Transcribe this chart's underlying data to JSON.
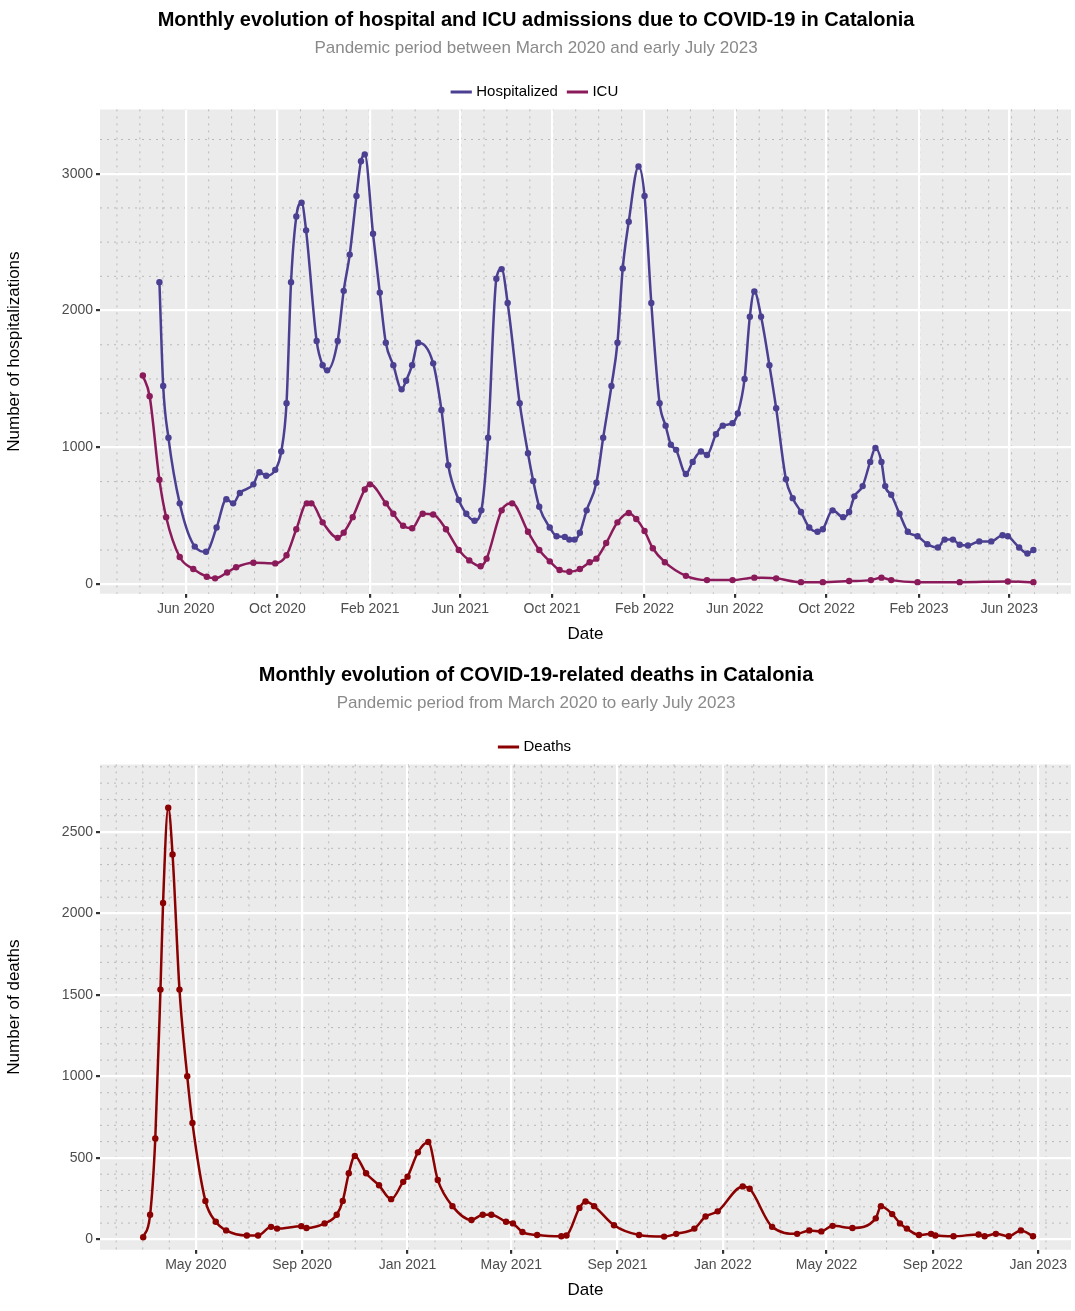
{
  "chart_data": [
    {
      "type": "line",
      "title": "Monthly evolution of hospital and ICU admissions due to COVID-19 in Catalonia",
      "subtitle": "Pandemic period between March 2020 and early July 2023",
      "xlabel": "Date",
      "ylabel": "Number of hospitalizations",
      "legend": "top",
      "grid": true,
      "marker": "circle",
      "line_style": "solid",
      "xlim": [
        "2020-02-08",
        "2023-08-22"
      ],
      "xticks": [
        {
          "value": "2020-06-01",
          "label": "Jun 2020"
        },
        {
          "value": "2020-10-01",
          "label": "Oct 2020"
        },
        {
          "value": "2021-02-01",
          "label": "Feb 2021"
        },
        {
          "value": "2021-06-01",
          "label": "Jun 2021"
        },
        {
          "value": "2021-10-01",
          "label": "Oct 2021"
        },
        {
          "value": "2022-02-01",
          "label": "Feb 2022"
        },
        {
          "value": "2022-06-01",
          "label": "Jun 2022"
        },
        {
          "value": "2022-10-01",
          "label": "Oct 2022"
        },
        {
          "value": "2023-02-01",
          "label": "Feb 2023"
        },
        {
          "value": "2023-06-01",
          "label": "Jun 2023"
        }
      ],
      "ylim": [
        -70,
        3470
      ],
      "yticks": [
        0,
        1000,
        2000,
        3000
      ],
      "series": [
        {
          "name": "Hospitalized",
          "color": "#4a3f91",
          "x": [
            "2020-04-27",
            "2020-05-02",
            "2020-05-09",
            "2020-05-24",
            "2020-06-13",
            "2020-06-28",
            "2020-07-12",
            "2020-07-25",
            "2020-08-03",
            "2020-08-12",
            "2020-08-30",
            "2020-09-07",
            "2020-09-16",
            "2020-09-28",
            "2020-10-06",
            "2020-10-13",
            "2020-10-19",
            "2020-10-26",
            "2020-11-02",
            "2020-11-08",
            "2020-11-22",
            "2020-11-30",
            "2020-12-06",
            "2020-12-20",
            "2020-12-28",
            "2021-01-05",
            "2021-01-14",
            "2021-01-20",
            "2021-01-25",
            "2021-02-05",
            "2021-02-14",
            "2021-02-22",
            "2021-03-04",
            "2021-03-15",
            "2021-03-21",
            "2021-03-29",
            "2021-04-06",
            "2021-04-26",
            "2021-05-07",
            "2021-05-16",
            "2021-05-30",
            "2021-06-09",
            "2021-06-20",
            "2021-06-29",
            "2021-07-08",
            "2021-07-19",
            "2021-07-26",
            "2021-08-03",
            "2021-08-19",
            "2021-08-30",
            "2021-09-06",
            "2021-09-14",
            "2021-09-28",
            "2021-10-07",
            "2021-10-18",
            "2021-10-24",
            "2021-10-31",
            "2021-11-07",
            "2021-11-16",
            "2021-11-29",
            "2021-12-08",
            "2021-12-19",
            "2021-12-27",
            "2022-01-03",
            "2022-01-11",
            "2022-01-24",
            "2022-02-01",
            "2022-02-10",
            "2022-02-21",
            "2022-03-01",
            "2022-03-08",
            "2022-03-15",
            "2022-03-28",
            "2022-04-06",
            "2022-04-17",
            "2022-04-25",
            "2022-05-07",
            "2022-05-16",
            "2022-05-29",
            "2022-06-05",
            "2022-06-14",
            "2022-06-21",
            "2022-06-27",
            "2022-07-06",
            "2022-07-17",
            "2022-07-26",
            "2022-08-08",
            "2022-08-17",
            "2022-08-28",
            "2022-09-08",
            "2022-09-19",
            "2022-09-26",
            "2022-10-09",
            "2022-10-23",
            "2022-10-31",
            "2022-11-07",
            "2022-11-18",
            "2022-11-28",
            "2022-12-05",
            "2022-12-13",
            "2022-12-18",
            "2022-12-26",
            "2023-01-06",
            "2023-01-17",
            "2023-01-30",
            "2023-02-12",
            "2023-02-26",
            "2023-03-07",
            "2023-03-18",
            "2023-03-27",
            "2023-04-07",
            "2023-04-22",
            "2023-05-08",
            "2023-05-23",
            "2023-05-30",
            "2023-06-14",
            "2023-06-25",
            "2023-07-03"
          ],
          "values": [
            2207,
            1449,
            1070,
            591,
            275,
            237,
            414,
            621,
            591,
            667,
            730,
            818,
            793,
            836,
            970,
            1323,
            2207,
            2687,
            2788,
            2586,
            1778,
            1601,
            1563,
            1778,
            2144,
            2409,
            2838,
            3091,
            3141,
            2561,
            2131,
            1765,
            1601,
            1424,
            1487,
            1601,
            1765,
            1614,
            1273,
            869,
            616,
            515,
            464,
            540,
            1070,
            2232,
            2303,
            2055,
            1323,
            957,
            755,
            566,
            414,
            351,
            346,
            326,
            326,
            376,
            540,
            742,
            1070,
            1449,
            1765,
            2308,
            2649,
            3053,
            2838,
            2055,
            1323,
            1159,
            1020,
            982,
            805,
            894,
            970,
            944,
            1096,
            1159,
            1177,
            1248,
            1500,
            1955,
            2139,
            1955,
            1601,
            1286,
            767,
            629,
            528,
            414,
            384,
            402,
            540,
            490,
            528,
            642,
            717,
            894,
            995,
            894,
            717,
            654,
            515,
            384,
            351,
            293,
            268,
            326,
            326,
            288,
            283,
            313,
            313,
            358,
            351,
            268,
            225,
            250
          ]
        },
        {
          "name": "ICU",
          "color": "#8b1a5b",
          "x": [
            "2020-04-05",
            "2020-04-14",
            "2020-04-27",
            "2020-05-06",
            "2020-05-24",
            "2020-06-11",
            "2020-06-29",
            "2020-07-10",
            "2020-07-26",
            "2020-08-07",
            "2020-08-30",
            "2020-09-28",
            "2020-10-13",
            "2020-10-26",
            "2020-11-09",
            "2020-11-15",
            "2020-11-30",
            "2020-12-20",
            "2020-12-28",
            "2021-01-09",
            "2021-01-25",
            "2021-02-01",
            "2021-02-22",
            "2021-03-04",
            "2021-03-17",
            "2021-03-29",
            "2021-04-12",
            "2021-04-26",
            "2021-05-13",
            "2021-05-30",
            "2021-06-13",
            "2021-06-28",
            "2021-07-06",
            "2021-07-26",
            "2021-08-09",
            "2021-08-30",
            "2021-09-14",
            "2021-09-28",
            "2021-10-11",
            "2021-10-24",
            "2021-11-07",
            "2021-11-20",
            "2021-11-29",
            "2021-12-12",
            "2021-12-27",
            "2022-01-11",
            "2022-01-21",
            "2022-02-01",
            "2022-02-12",
            "2022-02-28",
            "2022-03-28",
            "2022-04-25",
            "2022-05-29",
            "2022-06-27",
            "2022-07-26",
            "2022-08-28",
            "2022-09-26",
            "2022-10-31",
            "2022-11-29",
            "2022-12-13",
            "2022-12-26",
            "2023-01-30",
            "2023-03-27",
            "2023-05-30",
            "2023-07-03"
          ],
          "values": [
            1525,
            1374,
            763,
            490,
            199,
            111,
            55,
            43,
            86,
            124,
            157,
            152,
            212,
            402,
            591,
            591,
            452,
            339,
            377,
            490,
            692,
            730,
            591,
            515,
            427,
            409,
            515,
            510,
            402,
            250,
            174,
            131,
            187,
            540,
            591,
            384,
            250,
            167,
            104,
            91,
            111,
            161,
            187,
            301,
            452,
            520,
            477,
            389,
            263,
            161,
            61,
            30,
            30,
            48,
            43,
            15,
            15,
            23,
            30,
            48,
            30,
            15,
            15,
            20,
            15
          ]
        }
      ]
    },
    {
      "type": "line",
      "title": "Monthly evolution of COVID-19-related deaths in Catalonia",
      "subtitle": "Pandemic period from March 2020 to early July 2023",
      "xlabel": "Date",
      "ylabel": "Number of deaths",
      "legend": "top",
      "grid": true,
      "marker": "circle",
      "line_style": "solid",
      "xlim": [
        "2020-01-11",
        "2023-02-08"
      ],
      "xticks": [
        {
          "value": "2020-05-01",
          "label": "May 2020"
        },
        {
          "value": "2020-09-01",
          "label": "Sep 2020"
        },
        {
          "value": "2021-01-01",
          "label": "Jan 2021"
        },
        {
          "value": "2021-05-01",
          "label": "May 2021"
        },
        {
          "value": "2021-09-01",
          "label": "Sep 2021"
        },
        {
          "value": "2022-01-01",
          "label": "Jan 2022"
        },
        {
          "value": "2022-05-01",
          "label": "May 2022"
        },
        {
          "value": "2022-09-01",
          "label": "Sep 2022"
        },
        {
          "value": "2023-01-01",
          "label": "Jan 2023"
        }
      ],
      "ylim": [
        -64,
        2915
      ],
      "yticks": [
        0,
        500,
        1000,
        1500,
        2000,
        2500
      ],
      "series": [
        {
          "name": "Deaths",
          "color": "#8b0000",
          "x": [
            "2020-03-01",
            "2020-03-09",
            "2020-03-15",
            "2020-03-21",
            "2020-03-24",
            "2020-03-30",
            "2020-04-04",
            "2020-04-12",
            "2020-04-21",
            "2020-04-27",
            "2020-05-12",
            "2020-05-24",
            "2020-06-05",
            "2020-06-29",
            "2020-07-12",
            "2020-07-27",
            "2020-08-03",
            "2020-08-31",
            "2020-09-06",
            "2020-09-27",
            "2020-10-11",
            "2020-10-18",
            "2020-10-25",
            "2020-11-01",
            "2020-11-14",
            "2020-11-29",
            "2020-12-13",
            "2020-12-27",
            "2021-01-01",
            "2021-01-13",
            "2021-01-25",
            "2021-02-05",
            "2021-02-22",
            "2021-03-16",
            "2021-03-29",
            "2021-04-08",
            "2021-04-25",
            "2021-05-03",
            "2021-05-14",
            "2021-05-31",
            "2021-06-28",
            "2021-07-04",
            "2021-07-19",
            "2021-07-26",
            "2021-08-05",
            "2021-08-28",
            "2021-09-26",
            "2021-10-25",
            "2021-11-08",
            "2021-11-29",
            "2021-12-12",
            "2021-12-26",
            "2022-01-24",
            "2022-02-01",
            "2022-02-27",
            "2022-03-28",
            "2022-04-11",
            "2022-04-25",
            "2022-05-08",
            "2022-05-31",
            "2022-06-27",
            "2022-07-03",
            "2022-07-16",
            "2022-07-25",
            "2022-08-02",
            "2022-08-16",
            "2022-08-30",
            "2022-09-04",
            "2022-09-25",
            "2022-10-24",
            "2022-10-31",
            "2022-11-13",
            "2022-11-28",
            "2022-12-12",
            "2022-12-26"
          ],
          "values": [
            13,
            151,
            619,
            1533,
            2065,
            2649,
            2362,
            1533,
            1001,
            714,
            236,
            108,
            55,
            24,
            24,
            77,
            66,
            81,
            70,
            98,
            151,
            236,
            406,
            512,
            406,
            332,
            247,
            353,
            385,
            534,
            598,
            364,
            204,
            119,
            151,
            151,
            108,
            98,
            45,
            27,
            19,
            24,
            193,
            232,
            204,
            87,
            27,
            17,
            34,
            66,
            140,
            172,
            325,
            311,
            77,
            34,
            55,
            49,
            83,
            70,
            129,
            204,
            155,
            98,
            66,
            27,
            34,
            24,
            19,
            30,
            19,
            34,
            19,
            55,
            19
          ]
        }
      ]
    }
  ]
}
